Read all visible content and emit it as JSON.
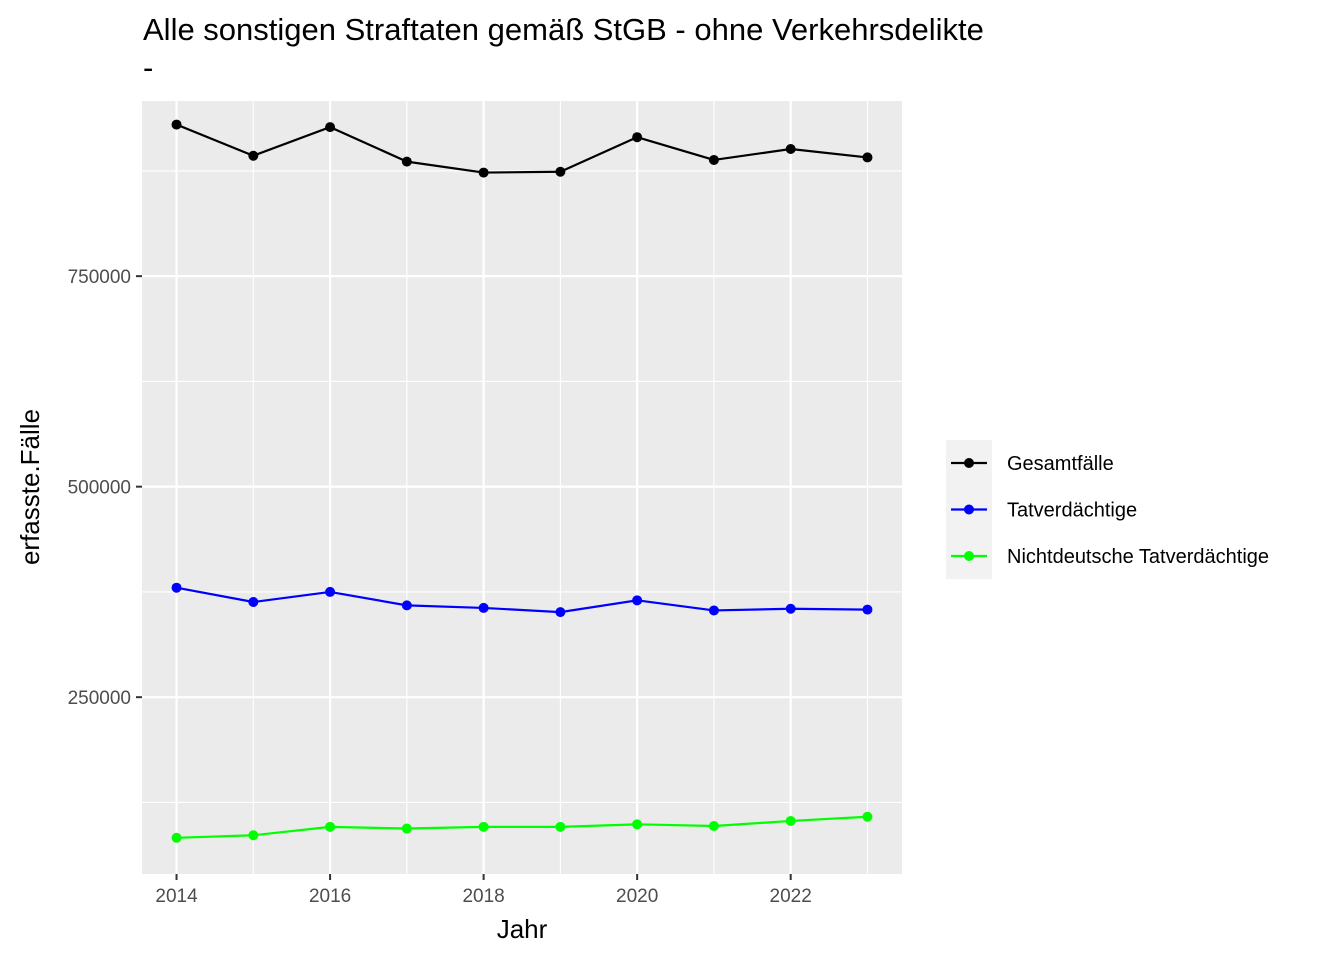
{
  "chart_data": {
    "type": "line",
    "title": "Alle sonstigen Straftaten gemäß StGB - ohne Verkehrsdelikte",
    "subtitle": "-",
    "xlabel": "Jahr",
    "ylabel": "erfasste.Fälle",
    "x": [
      2014,
      2015,
      2016,
      2017,
      2018,
      2019,
      2020,
      2021,
      2022,
      2023
    ],
    "xticks": [
      2014,
      2016,
      2018,
      2020,
      2022
    ],
    "xlim": [
      2013.55,
      2023.45
    ],
    "yticks": [
      250000,
      500000,
      750000
    ],
    "ylim": [
      40000,
      958000
    ],
    "grid": true,
    "legend_position": "right",
    "series": [
      {
        "name": "Gesamtfälle",
        "color": "#000000",
        "values": [
          930000,
          893000,
          927000,
          886000,
          873000,
          874000,
          915000,
          888000,
          901000,
          891000
        ]
      },
      {
        "name": "Tatverdächtige",
        "color": "#0000ff",
        "values": [
          380000,
          363000,
          375000,
          359000,
          356000,
          351000,
          365000,
          353000,
          355000,
          354000
        ]
      },
      {
        "name": "Nichtdeutsche Tatverdächtige",
        "color": "#00ff00",
        "values": [
          83000,
          86000,
          96000,
          94000,
          96000,
          96000,
          99000,
          97000,
          103000,
          108000
        ]
      }
    ]
  }
}
